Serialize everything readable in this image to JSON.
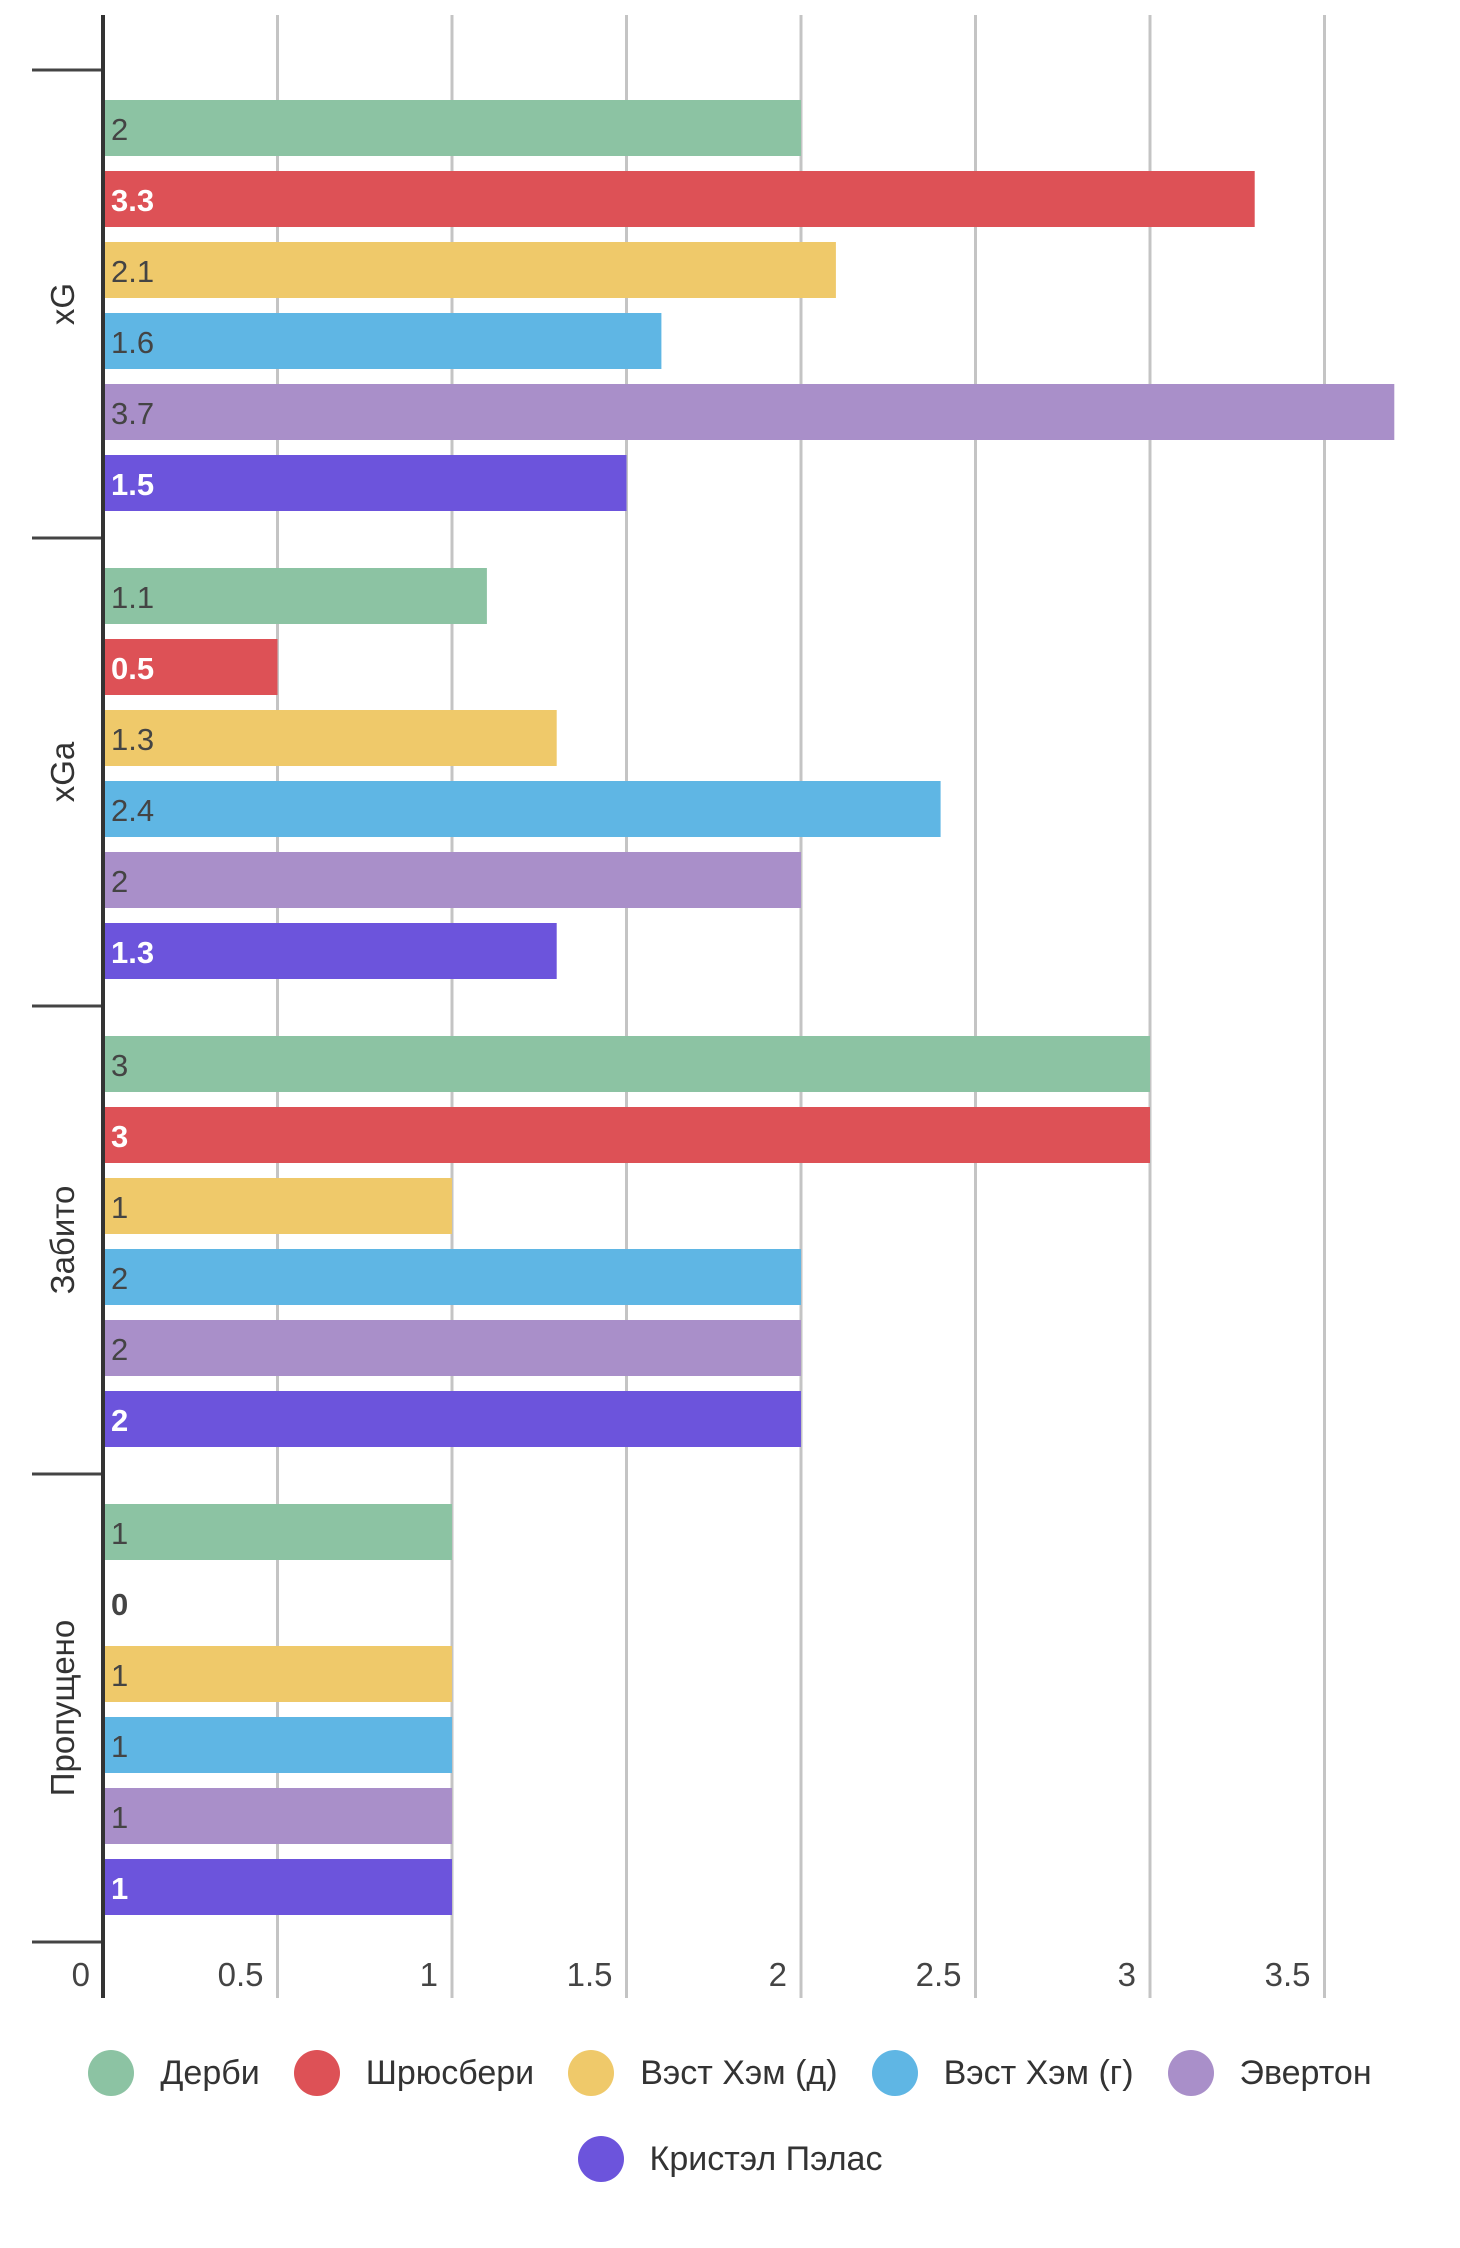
{
  "chart_data": {
    "type": "bar",
    "orientation": "horizontal",
    "categories": [
      "xG",
      "xGa",
      "Забито",
      "Пропущено"
    ],
    "series": [
      {
        "name": "Дерби",
        "color": "#8cc3a3",
        "values": [
          2,
          1.1,
          3,
          1
        ]
      },
      {
        "name": "Шрюсбери",
        "color": "#dd5156",
        "values": [
          3.3,
          0.5,
          3,
          0
        ]
      },
      {
        "name": "Вэст Хэм (д)",
        "color": "#efc96a",
        "values": [
          2.1,
          1.3,
          1,
          1
        ]
      },
      {
        "name": "Вэст Хэм (г)",
        "color": "#5fb6e4",
        "values": [
          1.6,
          2.4,
          2,
          1
        ]
      },
      {
        "name": "Эвертон",
        "color": "#a98fc9",
        "values": [
          3.7,
          2,
          2,
          1
        ]
      },
      {
        "name": "Кристэл Пэлас",
        "color": "#6c54dc",
        "values": [
          1.5,
          1.3,
          2,
          1
        ]
      }
    ],
    "data_labels": [
      [
        "2",
        "1.1",
        "3",
        "1"
      ],
      [
        "3.3",
        "0.5",
        "3",
        "0"
      ],
      [
        "2.1",
        "1.3",
        "1",
        "1"
      ],
      [
        "1.6",
        "2.4",
        "2",
        "1"
      ],
      [
        "3.7",
        "2",
        "2",
        "1"
      ],
      [
        "1.5",
        "1.3",
        "2",
        "1"
      ]
    ],
    "x_ticks": [
      "0",
      "0.5",
      "1",
      "1.5",
      "2",
      "2.5",
      "3",
      "3.5"
    ],
    "xlim": [
      0,
      3.7
    ],
    "grid": true,
    "legend_position": "bottom"
  }
}
